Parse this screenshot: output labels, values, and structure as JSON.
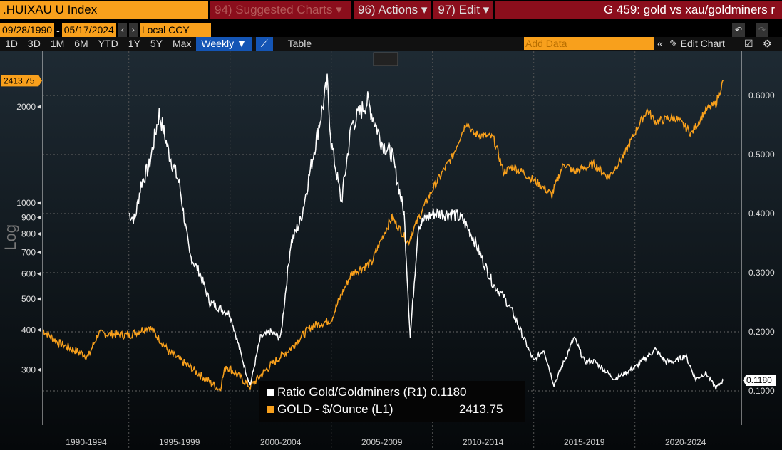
{
  "header": {
    "ticker": ".HUIXAU U Index",
    "suggested": "94) Suggested Charts ▾",
    "actions": "96) Actions ▾",
    "edit": "97) Edit ▾",
    "title": "G 459: gold vs xau/goldminers r"
  },
  "controls": {
    "start_date": "09/28/1990",
    "dash": "-",
    "end_date": "05/17/2024",
    "currency": "Local CCY",
    "periods": [
      "1D",
      "3D",
      "1M",
      "6M",
      "YTD",
      "1Y",
      "5Y",
      "Max"
    ],
    "frequency": "Weekly ▼",
    "table": "Table",
    "add_data_placeholder": "Add Data",
    "edit_chart": "Edit Chart"
  },
  "colors": {
    "gold": "#f8a01c",
    "ratio": "#ffffff",
    "accent_red": "#8b0e1c"
  },
  "chart_data": {
    "type": "line",
    "left_axis": {
      "scale": "log",
      "label": "Log",
      "ticks": [
        300,
        400,
        500,
        600,
        700,
        800,
        900,
        1000,
        2000
      ],
      "current_label": "2413.75"
    },
    "right_axis": {
      "ticks": [
        "0.1000",
        "0.2000",
        "0.3000",
        "0.4000",
        "0.5000",
        "0.6000"
      ],
      "current_label": "0.1180"
    },
    "x_labels": [
      "1990-1994",
      "1995-1999",
      "2000-2004",
      "2005-2009",
      "2010-2014",
      "2015-2019",
      "2020-2024"
    ],
    "series": [
      {
        "name": "Ratio Gold/Goldminers (R1)",
        "last": "0.1180",
        "axis": "right",
        "points": [
          [
            1995,
            0.4
          ],
          [
            1995.3,
            0.39
          ],
          [
            1995.6,
            0.45
          ],
          [
            1996,
            0.48
          ],
          [
            1996.5,
            0.57
          ],
          [
            1997,
            0.5
          ],
          [
            1997.5,
            0.45
          ],
          [
            1998,
            0.33
          ],
          [
            1998.5,
            0.3
          ],
          [
            1999,
            0.25
          ],
          [
            2000,
            0.23
          ],
          [
            2000.8,
            0.13
          ],
          [
            2001,
            0.11
          ],
          [
            2001.5,
            0.19
          ],
          [
            2002,
            0.2
          ],
          [
            2002.5,
            0.19
          ],
          [
            2003,
            0.35
          ],
          [
            2003.5,
            0.39
          ],
          [
            2004,
            0.48
          ],
          [
            2004.8,
            0.62
          ],
          [
            2005,
            0.52
          ],
          [
            2005.5,
            0.42
          ],
          [
            2006,
            0.55
          ],
          [
            2006.8,
            0.59
          ],
          [
            2007.5,
            0.52
          ],
          [
            2008,
            0.5
          ],
          [
            2008.6,
            0.4
          ],
          [
            2008.9,
            0.19
          ],
          [
            2009.3,
            0.38
          ],
          [
            2010,
            0.4
          ],
          [
            2011,
            0.4
          ],
          [
            2011.5,
            0.39
          ],
          [
            2012,
            0.36
          ],
          [
            2012.5,
            0.32
          ],
          [
            2013,
            0.28
          ],
          [
            2013.5,
            0.26
          ],
          [
            2014,
            0.23
          ],
          [
            2015,
            0.15
          ],
          [
            2015.5,
            0.17
          ],
          [
            2016,
            0.11
          ],
          [
            2016.5,
            0.15
          ],
          [
            2017,
            0.19
          ],
          [
            2017.5,
            0.15
          ],
          [
            2018,
            0.15
          ],
          [
            2019,
            0.12
          ],
          [
            2020,
            0.14
          ],
          [
            2021,
            0.17
          ],
          [
            2021.5,
            0.15
          ],
          [
            2022,
            0.15
          ],
          [
            2022.5,
            0.16
          ],
          [
            2023,
            0.12
          ],
          [
            2023.5,
            0.13
          ],
          [
            2024,
            0.105
          ],
          [
            2024.37,
            0.118
          ]
        ]
      },
      {
        "name": "GOLD - $/Ounce (L1)",
        "last": "2413.75",
        "axis": "left",
        "points": [
          [
            1990.75,
            400
          ],
          [
            1991.5,
            365
          ],
          [
            1993,
            330
          ],
          [
            1993.5,
            390
          ],
          [
            1995,
            385
          ],
          [
            1996,
            410
          ],
          [
            1997,
            340
          ],
          [
            1998.5,
            290
          ],
          [
            1999.5,
            260
          ],
          [
            1999.8,
            310
          ],
          [
            2001,
            265
          ],
          [
            2002,
            310
          ],
          [
            2003,
            350
          ],
          [
            2004,
            410
          ],
          [
            2005,
            430
          ],
          [
            2006,
            600
          ],
          [
            2007,
            650
          ],
          [
            2008,
            900
          ],
          [
            2008.8,
            750
          ],
          [
            2009.5,
            950
          ],
          [
            2010,
            1100
          ],
          [
            2011,
            1400
          ],
          [
            2011.7,
            1800
          ],
          [
            2012,
            1650
          ],
          [
            2013,
            1600
          ],
          [
            2013.5,
            1250
          ],
          [
            2014,
            1300
          ],
          [
            2015,
            1180
          ],
          [
            2015.9,
            1060
          ],
          [
            2016.5,
            1330
          ],
          [
            2017,
            1250
          ],
          [
            2018,
            1320
          ],
          [
            2018.7,
            1200
          ],
          [
            2019.5,
            1420
          ],
          [
            2020.6,
            1950
          ],
          [
            2021,
            1800
          ],
          [
            2022,
            1850
          ],
          [
            2022.8,
            1650
          ],
          [
            2023.5,
            1950
          ],
          [
            2024,
            2050
          ],
          [
            2024.37,
            2413.75
          ]
        ]
      }
    ]
  }
}
